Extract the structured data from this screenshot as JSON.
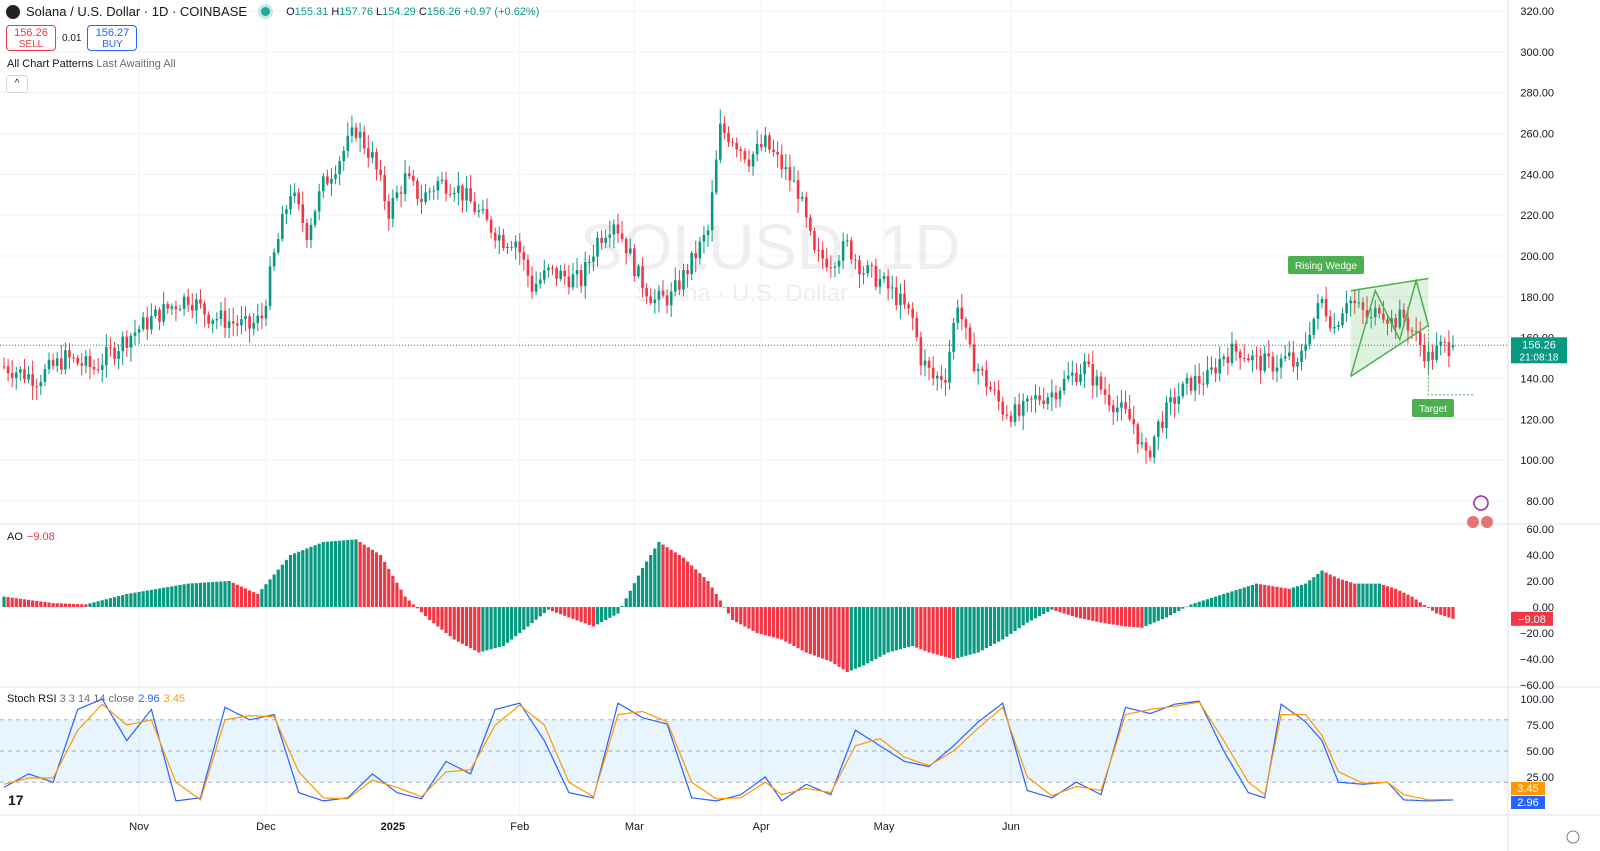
{
  "header": {
    "symbol_title": "Solana / U.S. Dollar · 1D · COINBASE",
    "open_label": "O",
    "open": "155.31",
    "high_label": "H",
    "high": "157.76",
    "low_label": "L",
    "low": "154.29",
    "close_label": "C",
    "close": "156.26",
    "change": "+0.97 (+0.62%)"
  },
  "trade": {
    "sell_price": "156.26",
    "sell_label": "SELL",
    "spread": "0.01",
    "buy_price": "156.27",
    "buy_label": "BUY"
  },
  "patterns_indicator": {
    "name": "All Chart Patterns",
    "args": "Last Awaiting All"
  },
  "collapse_icon": "chevron-up-icon",
  "watermark": {
    "ticker": "SOLUSD, 1D",
    "name": "Solana · U.S. Dollar"
  },
  "price_label": "156.26",
  "countdown": "21:08:18",
  "ao_panel": {
    "name": "AO",
    "value": "−9.08",
    "axis_label": "−9.08"
  },
  "stoch_panel": {
    "name": "Stoch RSI",
    "args": "3 3 14 14 close",
    "k_value": "2.96",
    "d_value": "3.45"
  },
  "colors": {
    "up": "#089981",
    "down": "#f23645",
    "k_line": "#2962ff",
    "d_line": "#ff9800",
    "pattern": "#4caf50"
  },
  "chart_data": [
    {
      "type": "candlestick",
      "title": "Solana / U.S. Dollar · 1D · COINBASE",
      "x_labels": [
        "Nov",
        "Dec",
        "2025",
        "Feb",
        "Mar",
        "Apr",
        "May",
        "Jun"
      ],
      "y_ticks": [
        "320.00",
        "300.00",
        "280.00",
        "260.00",
        "240.00",
        "220.00",
        "200.00",
        "180.00",
        "160.00",
        "140.00",
        "120.00",
        "100.00",
        "80.00"
      ],
      "ylim": [
        70,
        322
      ],
      "grid": true,
      "close_path": [
        [
          0,
          146
        ],
        [
          8,
          140
        ],
        [
          15,
          150
        ],
        [
          22,
          145
        ],
        [
          30,
          160
        ],
        [
          38,
          172
        ],
        [
          45,
          180
        ],
        [
          50,
          171
        ],
        [
          55,
          168
        ],
        [
          60,
          165
        ],
        [
          63,
          170
        ],
        [
          66,
          200
        ],
        [
          70,
          232
        ],
        [
          74,
          212
        ],
        [
          78,
          235
        ],
        [
          82,
          248
        ],
        [
          86,
          262
        ],
        [
          90,
          248
        ],
        [
          94,
          222
        ],
        [
          98,
          238
        ],
        [
          102,
          228
        ],
        [
          106,
          236
        ],
        [
          110,
          235
        ],
        [
          114,
          226
        ],
        [
          118,
          216
        ],
        [
          122,
          208
        ],
        [
          125,
          208
        ],
        [
          129,
          185
        ],
        [
          133,
          192
        ],
        [
          137,
          190
        ],
        [
          141,
          188
        ],
        [
          145,
          208
        ],
        [
          149,
          218
        ],
        [
          152,
          205
        ],
        [
          155,
          190
        ],
        [
          159,
          178
        ],
        [
          163,
          180
        ],
        [
          168,
          197
        ],
        [
          172,
          212
        ],
        [
          175,
          262
        ],
        [
          178,
          258
        ],
        [
          182,
          248
        ],
        [
          186,
          255
        ],
        [
          190,
          244
        ],
        [
          194,
          232
        ],
        [
          198,
          200
        ],
        [
          202,
          198
        ],
        [
          206,
          205
        ],
        [
          210,
          193
        ],
        [
          214,
          188
        ],
        [
          218,
          180
        ],
        [
          222,
          169
        ],
        [
          224,
          150
        ],
        [
          227,
          140
        ],
        [
          230,
          142
        ],
        [
          233,
          178
        ],
        [
          236,
          152
        ],
        [
          240,
          138
        ],
        [
          244,
          125
        ],
        [
          248,
          122
        ],
        [
          252,
          130
        ],
        [
          256,
          133
        ],
        [
          260,
          140
        ],
        [
          264,
          146
        ],
        [
          268,
          135
        ],
        [
          272,
          126
        ],
        [
          276,
          118
        ],
        [
          279,
          100
        ],
        [
          282,
          117
        ],
        [
          286,
          130
        ],
        [
          290,
          138
        ],
        [
          294,
          140
        ],
        [
          298,
          152
        ],
        [
          302,
          154
        ],
        [
          306,
          148
        ],
        [
          310,
          147
        ],
        [
          314,
          150
        ],
        [
          316,
          144
        ],
        [
          319,
          165
        ],
        [
          322,
          178
        ],
        [
          325,
          165
        ],
        [
          328,
          180
        ],
        [
          331,
          174
        ],
        [
          334,
          168
        ],
        [
          336,
          176
        ],
        [
          339,
          168
        ],
        [
          342,
          170
        ],
        [
          345,
          160
        ],
        [
          348,
          150
        ],
        [
          351,
          155
        ],
        [
          354,
          156.26
        ]
      ],
      "dates_note_index_range": [
        0,
        354
      ]
    },
    {
      "type": "bar",
      "name": "AO",
      "ylim": [
        -60,
        60
      ],
      "y_ticks": [
        "60.00",
        "40.00",
        "20.00",
        "0.00",
        "−20.00",
        "−40.00",
        "−60.00"
      ],
      "last_value": -9.08,
      "profile": [
        [
          0,
          8
        ],
        [
          12,
          3
        ],
        [
          20,
          2
        ],
        [
          30,
          10
        ],
        [
          45,
          18
        ],
        [
          55,
          20
        ],
        [
          62,
          10
        ],
        [
          70,
          40
        ],
        [
          78,
          50
        ],
        [
          86,
          52
        ],
        [
          92,
          40
        ],
        [
          98,
          8
        ],
        [
          104,
          -10
        ],
        [
          110,
          -25
        ],
        [
          116,
          -35
        ],
        [
          122,
          -30
        ],
        [
          128,
          -15
        ],
        [
          133,
          -2
        ],
        [
          138,
          -8
        ],
        [
          144,
          -15
        ],
        [
          150,
          -5
        ],
        [
          156,
          30
        ],
        [
          160,
          50
        ],
        [
          166,
          38
        ],
        [
          172,
          20
        ],
        [
          178,
          -10
        ],
        [
          184,
          -20
        ],
        [
          190,
          -25
        ],
        [
          196,
          -35
        ],
        [
          202,
          -42
        ],
        [
          206,
          -50
        ],
        [
          210,
          -45
        ],
        [
          216,
          -35
        ],
        [
          222,
          -30
        ],
        [
          226,
          -35
        ],
        [
          232,
          -40
        ],
        [
          238,
          -35
        ],
        [
          244,
          -25
        ],
        [
          250,
          -12
        ],
        [
          256,
          -2
        ],
        [
          262,
          -8
        ],
        [
          268,
          -12
        ],
        [
          274,
          -15
        ],
        [
          278,
          -16
        ],
        [
          284,
          -8
        ],
        [
          290,
          2
        ],
        [
          298,
          10
        ],
        [
          306,
          18
        ],
        [
          314,
          14
        ],
        [
          318,
          18
        ],
        [
          322,
          28
        ],
        [
          326,
          22
        ],
        [
          330,
          18
        ],
        [
          336,
          18
        ],
        [
          340,
          14
        ],
        [
          344,
          8
        ],
        [
          350,
          -5
        ],
        [
          354,
          -9.08
        ]
      ]
    },
    {
      "type": "line",
      "name": "Stoch RSI",
      "ylim": [
        0,
        100
      ],
      "y_ticks": [
        "100.00",
        "75.00",
        "50.00",
        "25.00"
      ],
      "bands": [
        20,
        50,
        80
      ],
      "series": [
        {
          "name": "K",
          "last": 2.96,
          "profile": [
            [
              0,
              15
            ],
            [
              6,
              28
            ],
            [
              12,
              20
            ],
            [
              18,
              90
            ],
            [
              24,
              100
            ],
            [
              30,
              60
            ],
            [
              36,
              90
            ],
            [
              42,
              2
            ],
            [
              48,
              5
            ],
            [
              54,
              92
            ],
            [
              60,
              80
            ],
            [
              66,
              85
            ],
            [
              72,
              10
            ],
            [
              78,
              2
            ],
            [
              84,
              5
            ],
            [
              90,
              28
            ],
            [
              96,
              10
            ],
            [
              102,
              4
            ],
            [
              108,
              40
            ],
            [
              114,
              28
            ],
            [
              120,
              90
            ],
            [
              126,
              96
            ],
            [
              132,
              60
            ],
            [
              138,
              10
            ],
            [
              144,
              5
            ],
            [
              150,
              96
            ],
            [
              156,
              82
            ],
            [
              162,
              76
            ],
            [
              168,
              5
            ],
            [
              174,
              2
            ],
            [
              180,
              8
            ],
            [
              186,
              25
            ],
            [
              190,
              2
            ],
            [
              196,
              18
            ],
            [
              202,
              8
            ],
            [
              208,
              70
            ],
            [
              214,
              55
            ],
            [
              220,
              40
            ],
            [
              226,
              35
            ],
            [
              232,
              55
            ],
            [
              238,
              78
            ],
            [
              244,
              96
            ],
            [
              250,
              12
            ],
            [
              256,
              5
            ],
            [
              262,
              20
            ],
            [
              268,
              8
            ],
            [
              274,
              92
            ],
            [
              280,
              86
            ],
            [
              286,
              95
            ],
            [
              292,
              98
            ],
            [
              298,
              50
            ],
            [
              304,
              10
            ],
            [
              308,
              5
            ],
            [
              312,
              95
            ],
            [
              318,
              78
            ],
            [
              322,
              60
            ],
            [
              326,
              20
            ],
            [
              332,
              18
            ],
            [
              338,
              20
            ],
            [
              342,
              3
            ],
            [
              348,
              2
            ],
            [
              354,
              2.96
            ]
          ]
        },
        {
          "name": "D",
          "last": 3.45,
          "profile": [
            [
              0,
              18
            ],
            [
              6,
              24
            ],
            [
              12,
              24
            ],
            [
              18,
              70
            ],
            [
              24,
              95
            ],
            [
              30,
              75
            ],
            [
              36,
              80
            ],
            [
              42,
              20
            ],
            [
              48,
              3
            ],
            [
              54,
              80
            ],
            [
              60,
              84
            ],
            [
              66,
              83
            ],
            [
              72,
              30
            ],
            [
              78,
              5
            ],
            [
              84,
              4
            ],
            [
              90,
              22
            ],
            [
              96,
              15
            ],
            [
              102,
              6
            ],
            [
              108,
              30
            ],
            [
              114,
              32
            ],
            [
              120,
              75
            ],
            [
              126,
              94
            ],
            [
              132,
              75
            ],
            [
              138,
              20
            ],
            [
              144,
              6
            ],
            [
              150,
              85
            ],
            [
              156,
              88
            ],
            [
              162,
              78
            ],
            [
              168,
              20
            ],
            [
              174,
              4
            ],
            [
              180,
              5
            ],
            [
              186,
              20
            ],
            [
              190,
              8
            ],
            [
              196,
              14
            ],
            [
              202,
              10
            ],
            [
              208,
              55
            ],
            [
              214,
              62
            ],
            [
              220,
              44
            ],
            [
              226,
              36
            ],
            [
              232,
              50
            ],
            [
              238,
              72
            ],
            [
              244,
              92
            ],
            [
              250,
              25
            ],
            [
              256,
              7
            ],
            [
              262,
              16
            ],
            [
              268,
              12
            ],
            [
              274,
              85
            ],
            [
              280,
              90
            ],
            [
              286,
              93
            ],
            [
              292,
              97
            ],
            [
              298,
              60
            ],
            [
              304,
              20
            ],
            [
              308,
              8
            ],
            [
              312,
              85
            ],
            [
              318,
              85
            ],
            [
              322,
              65
            ],
            [
              326,
              30
            ],
            [
              332,
              19
            ],
            [
              338,
              20
            ],
            [
              342,
              8
            ],
            [
              348,
              3
            ],
            [
              354,
              3.45
            ]
          ]
        }
      ]
    }
  ],
  "annotations": {
    "pattern_label": "Rising Wedge",
    "target_label": "Target"
  },
  "logo_text": "17"
}
